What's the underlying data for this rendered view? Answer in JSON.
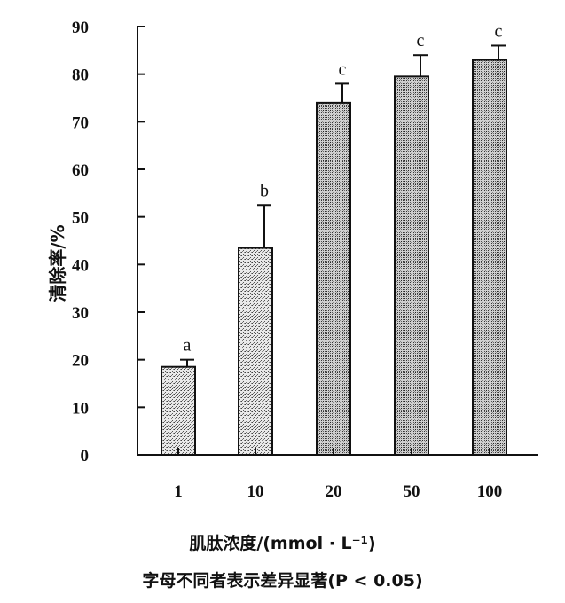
{
  "chart_data": {
    "type": "bar",
    "categories": [
      "1",
      "10",
      "20",
      "50",
      "100"
    ],
    "values": [
      18.5,
      43.5,
      74,
      79.5,
      83
    ],
    "error": [
      1.5,
      9,
      4,
      4.5,
      3
    ],
    "significance_labels": [
      "a",
      "b",
      "c",
      "c",
      "c"
    ],
    "xlabel": "肌肽浓度/(mmol · L⁻¹)",
    "ylabel": "清除率/%",
    "ylim": [
      0,
      90
    ],
    "yticks": [
      0,
      10,
      20,
      30,
      40,
      50,
      60,
      70,
      80,
      90
    ],
    "grid": false,
    "bar_fill": "stippled gray",
    "footnote": "字母不同者表示差异显著(P < 0.05)"
  }
}
